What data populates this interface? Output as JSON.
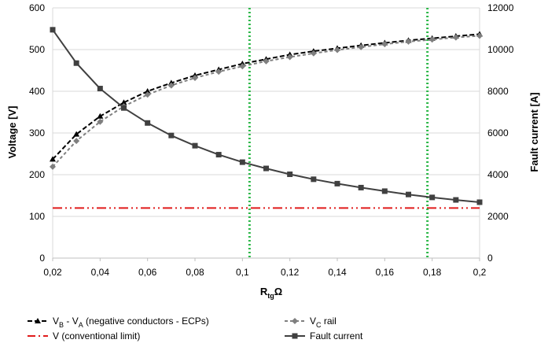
{
  "chart_data": {
    "type": "line",
    "x_label": "R",
    "x_label_sub": "tg",
    "x_label_unit": "Ω",
    "y_left_label": "Voltage [V]",
    "y_right_label": "Fault current [A]",
    "x_range": [
      0.02,
      0.2
    ],
    "y_left_range": [
      0,
      600
    ],
    "y_right_range": [
      0,
      12000
    ],
    "x_ticks": [
      "0,02",
      "0,04",
      "0,06",
      "0,08",
      "0,1",
      "0,12",
      "0,14",
      "0,16",
      "0,18",
      "0,2"
    ],
    "y_left_ticks": [
      "0",
      "100",
      "200",
      "300",
      "400",
      "500",
      "600"
    ],
    "y_right_ticks": [
      "0",
      "2000",
      "4000",
      "6000",
      "8000",
      "10000",
      "12000"
    ],
    "grid": "horizontal",
    "x": [
      0.02,
      0.03,
      0.04,
      0.05,
      0.06,
      0.07,
      0.08,
      0.09,
      0.1,
      0.11,
      0.12,
      0.13,
      0.14,
      0.15,
      0.16,
      0.17,
      0.18,
      0.19,
      0.2
    ],
    "series": [
      {
        "name_parts": [
          "V",
          "B",
          " - V",
          "A",
          "  (negative conductors - ECPs)"
        ],
        "axis": "left",
        "color": "#000000",
        "dash": "6,3",
        "marker": "triangle",
        "values": [
          237,
          297,
          340,
          373,
          400,
          420,
          438,
          452,
          466,
          477,
          488,
          496,
          503,
          510,
          516,
          522,
          527,
          532,
          537
        ]
      },
      {
        "name_parts": [
          "V",
          "C",
          "  rail"
        ],
        "axis": "left",
        "color": "#7f7f7f",
        "dash": "4,3",
        "marker": "diamond",
        "values": [
          219,
          281,
          327,
          364,
          392,
          414,
          432,
          447,
          460,
          472,
          482,
          491,
          499,
          506,
          513,
          519,
          524,
          529,
          533
        ]
      },
      {
        "name": "Fault current",
        "axis": "right",
        "color": "#404040",
        "dash": "",
        "marker": "square",
        "values": [
          10950,
          9350,
          8130,
          7200,
          6480,
          5880,
          5390,
          4960,
          4600,
          4300,
          4020,
          3780,
          3570,
          3380,
          3210,
          3050,
          2910,
          2790,
          2680
        ]
      }
    ],
    "reference_line": {
      "name": "V (conventional limit)",
      "axis": "left",
      "value": 120,
      "color": "#e01b1b"
    },
    "vertical_markers": {
      "x": [
        0.103,
        0.178
      ],
      "color": "#2eb84a"
    },
    "legend_position": "bottom"
  }
}
